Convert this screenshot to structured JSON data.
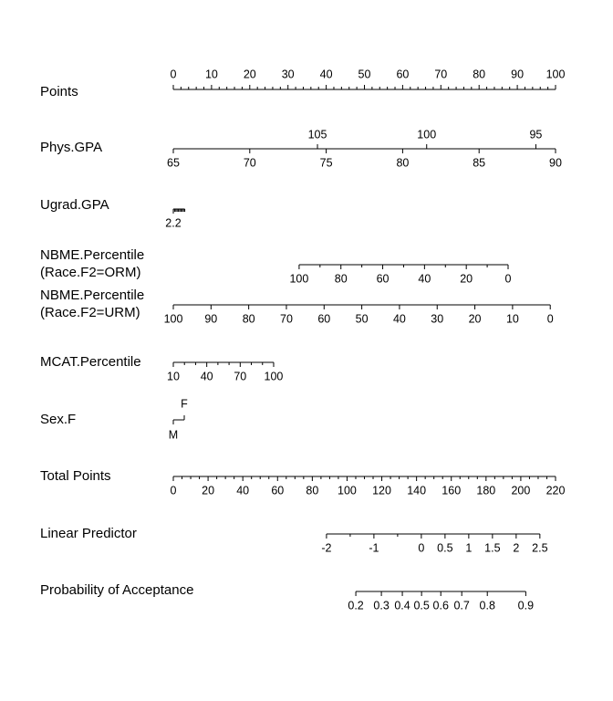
{
  "chart_data": {
    "type": "nomogram",
    "rows": [
      {
        "label": "Points",
        "xlim": [
          0,
          100
        ],
        "ticks": [
          0,
          10,
          20,
          30,
          40,
          50,
          60,
          70,
          80,
          90,
          100
        ],
        "minor_ticks": [
          2,
          4,
          6,
          8,
          12,
          14,
          16,
          18,
          22,
          24,
          26,
          28,
          32,
          34,
          36,
          38,
          42,
          44,
          46,
          48,
          52,
          54,
          56,
          58,
          62,
          64,
          66,
          68,
          72,
          74,
          76,
          78,
          82,
          84,
          86,
          88,
          92,
          94,
          96,
          98
        ]
      },
      {
        "label": "Phys.GPA",
        "xlim": [
          65,
          90
        ],
        "ticks": [
          65,
          70,
          75,
          80,
          85,
          90
        ],
        "x2lim": [
          111.6,
          94.1
        ],
        "x2ticks": [
          105,
          100,
          95
        ]
      },
      {
        "label": "Ugrad.GPA",
        "xlim": [
          2.2,
          62.2
        ],
        "ticks": [
          2.2
        ],
        "minor_ticks": [
          2.4,
          2.6,
          2.8,
          3.0,
          3.2,
          3.4,
          3.6,
          3.8,
          4.0
        ]
      },
      {
        "label": [
          "NBME.Percentile",
          "(Race.F2=ORM)"
        ],
        "xlim": [
          160.2,
          -22.7
        ],
        "ticks": [
          100,
          80,
          60,
          40,
          20,
          0
        ],
        "minor_ticks": [
          90,
          70,
          50,
          30,
          10
        ]
      },
      {
        "label": [
          "NBME.Percentile",
          "(Race.F2=URM)"
        ],
        "xlim": [
          100,
          -1.4
        ],
        "ticks": [
          100,
          90,
          80,
          70,
          60,
          50,
          40,
          30,
          20,
          10,
          0
        ]
      },
      {
        "label": "MCAT.Percentile",
        "xlim": [
          10,
          352.9
        ],
        "ticks": [
          10,
          40,
          70,
          100
        ],
        "minor_ticks": [
          20,
          30,
          50,
          60,
          80,
          90
        ]
      },
      {
        "label": "Sex.F",
        "xlim": [
          0,
          34.9
        ],
        "ticks": [
          {
            "value": 0,
            "label": "M"
          },
          {
            "value": 1,
            "label": "F"
          }
        ]
      },
      {
        "label": "Total Points",
        "xlim": [
          0,
          220
        ],
        "ticks": [
          0,
          20,
          40,
          60,
          80,
          100,
          120,
          140,
          160,
          180,
          200,
          220
        ],
        "minor_ticks": [
          5,
          10,
          15,
          25,
          30,
          35,
          45,
          50,
          55,
          65,
          70,
          75,
          85,
          90,
          95,
          105,
          110,
          115,
          125,
          130,
          135,
          145,
          150,
          155,
          165,
          170,
          175,
          185,
          190,
          195,
          205,
          210,
          215
        ]
      },
      {
        "label": "Linear Predictor",
        "xlim": [
          -5.23,
          2.83
        ],
        "ticks": [
          -2,
          -1,
          0,
          0.5,
          1,
          1.5,
          2,
          2.5
        ],
        "minor_ticks": [
          -1.5,
          -0.5
        ]
      },
      {
        "label": "Probability of Acceptance",
        "scale": "logit",
        "xlim": [
          0.0053,
          0.944
        ],
        "ticks": [
          0.2,
          0.3,
          0.4,
          0.5,
          0.6,
          0.7,
          0.8,
          0.9
        ]
      }
    ]
  }
}
